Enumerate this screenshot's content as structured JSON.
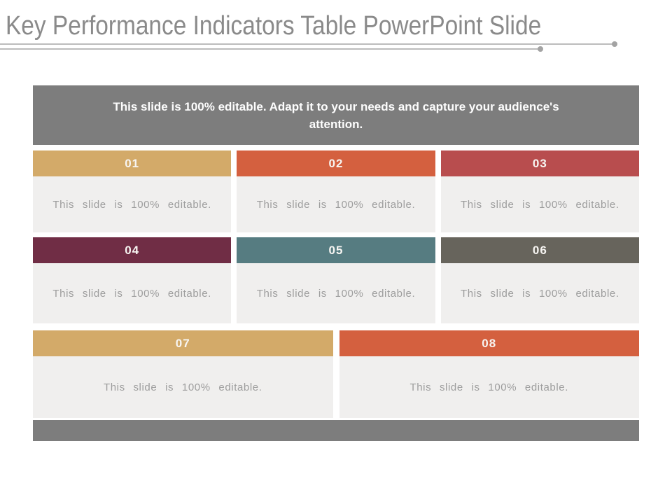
{
  "title": "Key Performance Indicators Table PowerPoint Slide",
  "banner": {
    "text": "This slide is 100% editable. Adapt it to your needs and capture your audience's attention.",
    "bg": "#7d7d7d"
  },
  "cells": [
    {
      "number": "01",
      "color": "#d3aa69",
      "body": "This slide is 100% editable."
    },
    {
      "number": "02",
      "color": "#d4603f",
      "body": "This slide is 100% editable."
    },
    {
      "number": "03",
      "color": "#b84d4e",
      "body": "This slide is 100% editable."
    },
    {
      "number": "04",
      "color": "#702d45",
      "body": "This slide is 100% editable."
    },
    {
      "number": "05",
      "color": "#567c81",
      "body": "This slide is 100% editable."
    },
    {
      "number": "06",
      "color": "#67645c",
      "body": "This slide is 100% editable."
    },
    {
      "number": "07",
      "color": "#d3aa69",
      "body": "This slide is 100% editable."
    },
    {
      "number": "08",
      "color": "#d4603f",
      "body": "This slide is 100% editable."
    }
  ],
  "footer": {
    "bg": "#7d7d7d"
  },
  "decor": {
    "rule_color": "#bcbcbc",
    "dot_color": "#a3a3a3",
    "title_color": "#8a8a8a",
    "cell_body_bg": "#f0efee"
  }
}
